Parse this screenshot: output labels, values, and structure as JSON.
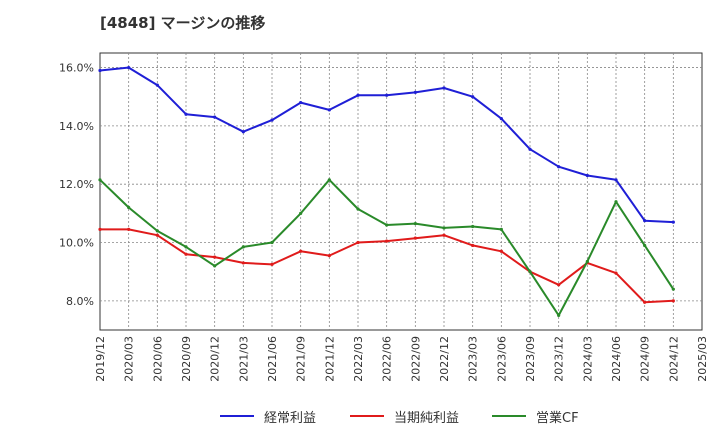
{
  "chart_data": {
    "type": "line",
    "title": "[4848]  マージンの推移",
    "xlabel": "",
    "ylabel": "",
    "categories": [
      "2019/12",
      "2020/03",
      "2020/06",
      "2020/09",
      "2020/12",
      "2021/03",
      "2021/06",
      "2021/09",
      "2021/12",
      "2022/03",
      "2022/06",
      "2022/09",
      "2022/12",
      "2023/03",
      "2023/06",
      "2023/09",
      "2023/12",
      "2024/03",
      "2024/06",
      "2024/09",
      "2024/12",
      "2025/03"
    ],
    "ylim": [
      7.0,
      16.5
    ],
    "yticks": [
      8.0,
      10.0,
      12.0,
      14.0,
      16.0
    ],
    "ytick_labels": [
      "8.0%",
      "10.0%",
      "12.0%",
      "14.0%",
      "16.0%"
    ],
    "grid": true,
    "legend_position": "bottom",
    "series": [
      {
        "name": "経常利益",
        "color": "#1f1fd6",
        "values": [
          15.9,
          16.0,
          15.4,
          14.4,
          14.3,
          13.8,
          14.2,
          14.8,
          14.55,
          15.05,
          15.05,
          15.15,
          15.3,
          15.0,
          14.25,
          13.2,
          12.6,
          12.3,
          12.15,
          10.75,
          10.7,
          null
        ]
      },
      {
        "name": "当期純利益",
        "color": "#e01b1b",
        "values": [
          10.45,
          10.45,
          10.25,
          9.6,
          9.5,
          9.3,
          9.25,
          9.7,
          9.55,
          10.0,
          10.05,
          10.15,
          10.25,
          9.9,
          9.7,
          9.0,
          8.55,
          9.3,
          8.95,
          7.95,
          8.0,
          null
        ]
      },
      {
        "name": "営業CF",
        "color": "#2a8a2a",
        "values": [
          12.15,
          11.2,
          10.4,
          9.85,
          9.2,
          9.85,
          10.0,
          11.0,
          12.15,
          11.15,
          10.6,
          10.65,
          10.5,
          10.55,
          10.45,
          9.0,
          7.5,
          9.35,
          11.4,
          9.9,
          8.4,
          null
        ]
      }
    ]
  }
}
